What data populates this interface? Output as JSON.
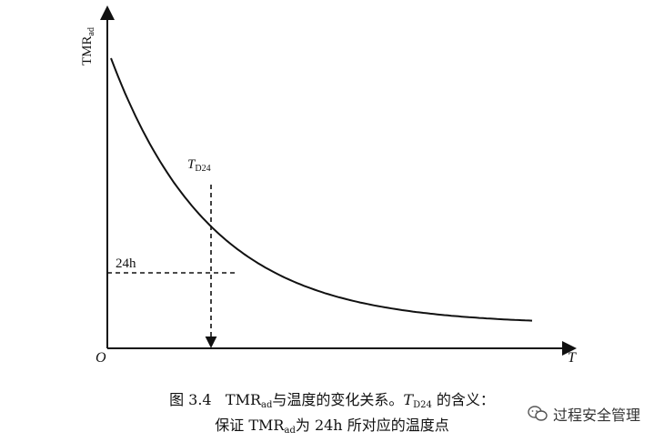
{
  "figure": {
    "y_axis_label": {
      "main": "TMR",
      "sub": "ad"
    },
    "x_axis_label": "T",
    "origin_label": "O",
    "marker_label": {
      "main": "T",
      "sub": "D24"
    },
    "level_label": "24h"
  },
  "caption": {
    "line1": {
      "number": "图 3.4",
      "part_a": "TMR",
      "sub_a": "ad",
      "part_b": "与温度的变化关系。",
      "part_c": "T",
      "sub_c": "D24",
      "part_d": " 的含义："
    },
    "line2": {
      "part_a": "保证 TMR",
      "sub_a": "ad",
      "part_b": "为 24h 所对应的温度点"
    }
  },
  "watermark": {
    "text": "过程安全管理",
    "icon": "chat-bubbles-icon"
  },
  "chart_data": {
    "type": "line",
    "xlabel": "T",
    "ylabel": "TMRad",
    "series": [
      {
        "values_description": "monotonic decay curve",
        "x": [
          0,
          0.2,
          0.4,
          0.6,
          0.8,
          1.0
        ],
        "y": [
          1.0,
          0.456,
          0.215,
          0.112,
          0.065,
          0.045
        ]
      }
    ],
    "annotations": [
      {
        "label": "24h",
        "at_x_label": "TD24"
      }
    ]
  }
}
